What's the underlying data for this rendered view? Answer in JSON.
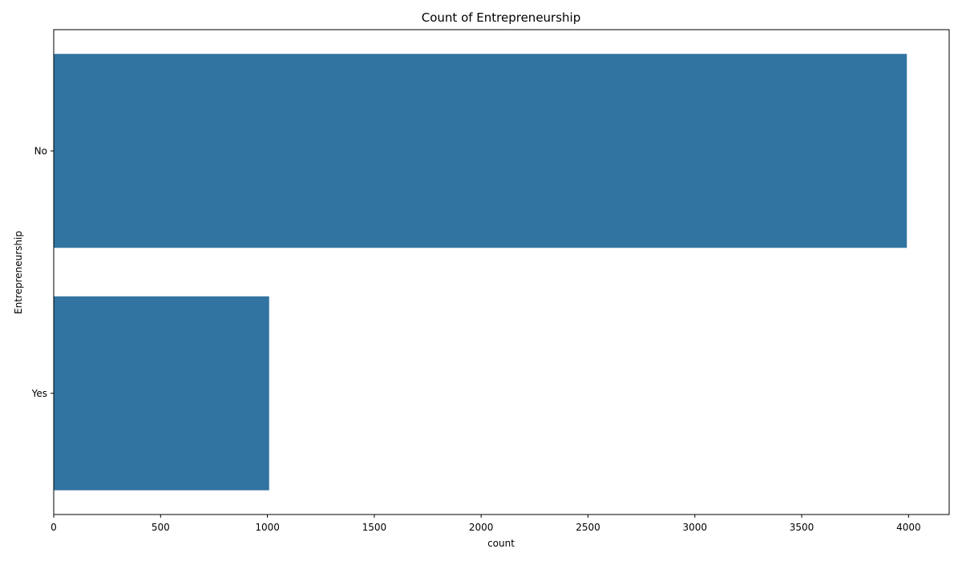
{
  "chart_data": {
    "type": "bar",
    "orientation": "horizontal",
    "title": "Count of Entrepreneurship",
    "xlabel": "count",
    "ylabel": "Entrepreneurship",
    "categories": [
      "No",
      "Yes"
    ],
    "values": [
      3992,
      1008
    ],
    "xlim": [
      0,
      4190
    ],
    "xticks": [
      0,
      500,
      1000,
      1500,
      2000,
      2500,
      3000,
      3500,
      4000
    ],
    "xtick_labels": [
      "0",
      "500",
      "1000",
      "1500",
      "2000",
      "2500",
      "3000",
      "3500",
      "4000"
    ],
    "grid": false,
    "bar_color": "#3274a1"
  }
}
